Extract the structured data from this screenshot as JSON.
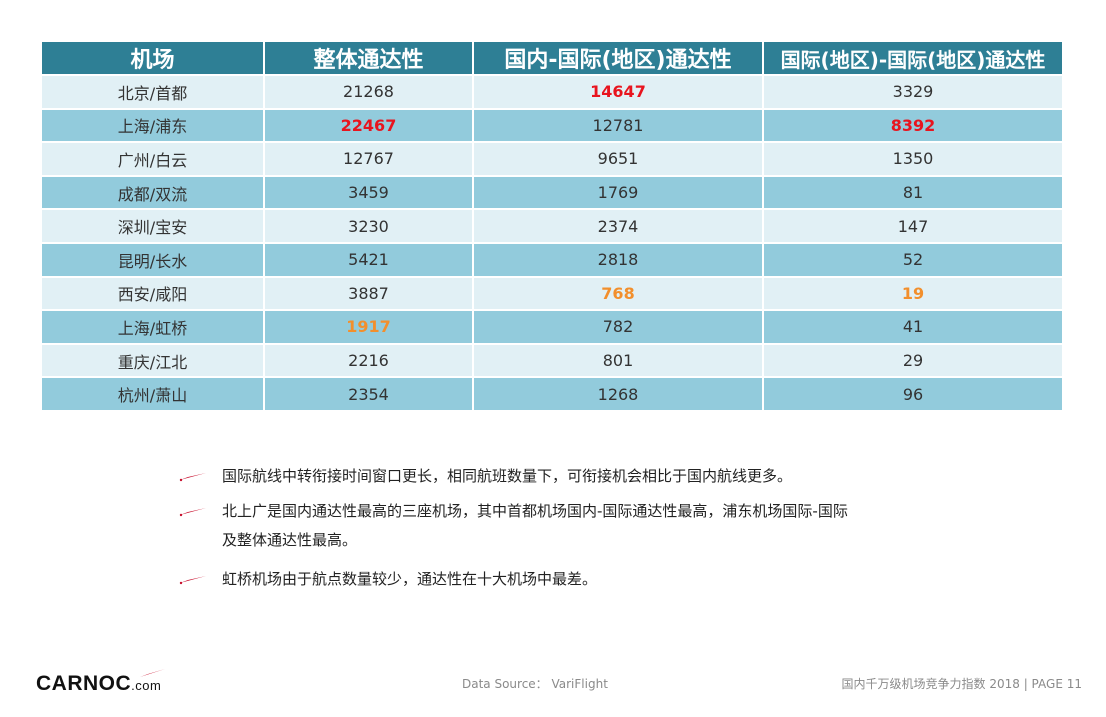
{
  "table": {
    "headers": [
      "机场",
      "整体通达性",
      "国内-国际(地区)通达性",
      "国际(地区)-国际(地区)通达性"
    ],
    "rows": [
      {
        "airport": "北京/首都",
        "overall": "21268",
        "dom_intl": "14647",
        "intl_intl": "3329"
      },
      {
        "airport": "上海/浦东",
        "overall": "22467",
        "dom_intl": "12781",
        "intl_intl": "8392"
      },
      {
        "airport": "广州/白云",
        "overall": "12767",
        "dom_intl": "9651",
        "intl_intl": "1350"
      },
      {
        "airport": "成都/双流",
        "overall": "3459",
        "dom_intl": "1769",
        "intl_intl": "81"
      },
      {
        "airport": "深圳/宝安",
        "overall": "3230",
        "dom_intl": "2374",
        "intl_intl": "147"
      },
      {
        "airport": "昆明/长水",
        "overall": "5421",
        "dom_intl": "2818",
        "intl_intl": "52"
      },
      {
        "airport": "西安/咸阳",
        "overall": "3887",
        "dom_intl": "768",
        "intl_intl": "19"
      },
      {
        "airport": "上海/虹桥",
        "overall": "1917",
        "dom_intl": "782",
        "intl_intl": "41"
      },
      {
        "airport": "重庆/江北",
        "overall": "2216",
        "dom_intl": "801",
        "intl_intl": "29"
      },
      {
        "airport": "杭州/萧山",
        "overall": "2354",
        "dom_intl": "1268",
        "intl_intl": "96"
      }
    ]
  },
  "bullets": [
    "国际航线中转衔接时间窗口更长，相同航班数量下，可衔接机会相比于国内航线更多。",
    "北上广是国内通达性最高的三座机场，其中首都机场国内-国际通达性最高，浦东机场国际-国际",
    "及整体通达性最高。",
    "虹桥机场由于航点数量较少，通达性在十大机场中最差。"
  ],
  "footer": {
    "logo_text": "CARNOC",
    "logo_suffix": ".com",
    "source": "Data Source：  VariFlight",
    "page_info": "国内千万级机场竞争力指数 2018 |   PAGE 11"
  },
  "colors": {
    "header_bg": "#2e7f95",
    "row_light": "#e1f0f5",
    "row_dark": "#92cbdc",
    "highlight_red": "#e8141e",
    "highlight_orange": "#f28f2c",
    "bullet_mark": "#c8102e"
  }
}
